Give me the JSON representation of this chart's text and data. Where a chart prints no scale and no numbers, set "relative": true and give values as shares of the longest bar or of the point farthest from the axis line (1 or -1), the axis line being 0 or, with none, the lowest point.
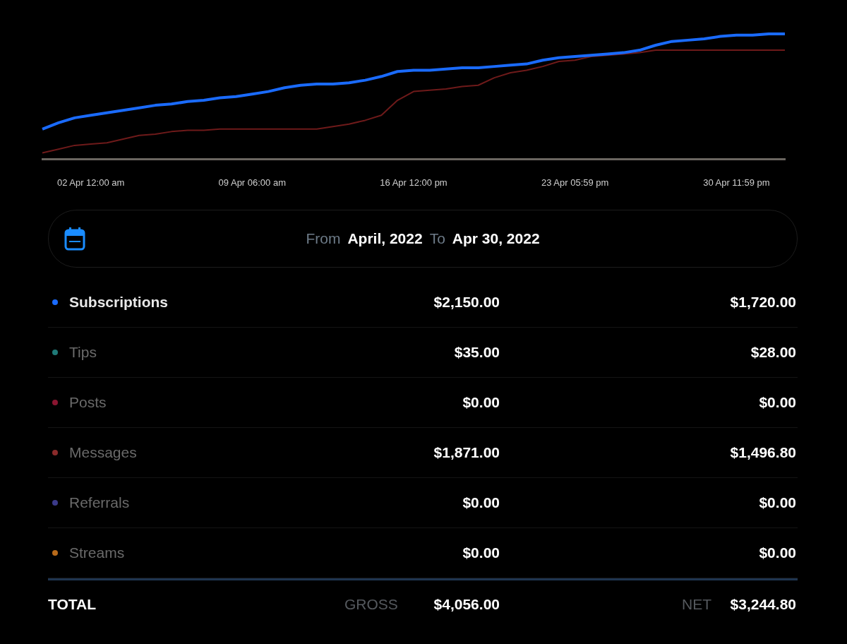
{
  "chart_data": [
    {
      "type": "line",
      "relative": true,
      "legend": false,
      "grid": false,
      "categories": [
        null,
        null,
        null,
        "02 Apr 12:00 am",
        null,
        null,
        null,
        null,
        null,
        null,
        null,
        null,
        null,
        "09 Apr 06:00 am",
        null,
        null,
        null,
        null,
        null,
        null,
        null,
        null,
        null,
        "16 Apr 12:00 pm",
        null,
        null,
        null,
        null,
        null,
        null,
        null,
        null,
        null,
        "23 Apr 05:59 pm",
        null,
        null,
        null,
        null,
        null,
        null,
        null,
        null,
        null,
        "30 Apr 11:59 pm",
        null,
        null,
        null
      ],
      "series": [
        {
          "color": "#1a6bff",
          "values": [
            0.24,
            0.29,
            0.33,
            0.35,
            0.37,
            0.39,
            0.41,
            0.43,
            0.44,
            0.46,
            0.47,
            0.49,
            0.5,
            0.52,
            0.54,
            0.57,
            0.59,
            0.6,
            0.6,
            0.61,
            0.63,
            0.66,
            0.7,
            0.71,
            0.71,
            0.72,
            0.73,
            0.73,
            0.74,
            0.75,
            0.76,
            0.79,
            0.81,
            0.82,
            0.83,
            0.84,
            0.85,
            0.87,
            0.91,
            0.94,
            0.95,
            0.96,
            0.98,
            0.99,
            0.99,
            1.0,
            1.0
          ]
        },
        {
          "color": "#6e1a1a",
          "values": [
            0.05,
            0.08,
            0.11,
            0.12,
            0.13,
            0.16,
            0.19,
            0.2,
            0.22,
            0.23,
            0.23,
            0.24,
            0.24,
            0.24,
            0.24,
            0.24,
            0.24,
            0.24,
            0.26,
            0.28,
            0.31,
            0.35,
            0.47,
            0.54,
            0.55,
            0.56,
            0.58,
            0.59,
            0.65,
            0.69,
            0.71,
            0.74,
            0.78,
            0.79,
            0.82,
            0.83,
            0.84,
            0.85,
            0.87,
            0.87,
            0.87,
            0.87,
            0.87,
            0.87,
            0.87,
            0.87,
            0.87
          ]
        }
      ]
    },
    {
      "type": "other",
      "annotations": [
        "From",
        "April, 2022",
        "To",
        "Apr 30, 2022",
        "TOTAL",
        "GROSS",
        "NET"
      ],
      "categories": [
        "Subscriptions",
        "Tips",
        "Posts",
        "Messages",
        "Referrals",
        "Streams"
      ],
      "colors": [
        "#1a6bff",
        "#1f7a78",
        "#8a1530",
        "#8a2a2a",
        "#3b3a8a",
        "#b86a1a"
      ],
      "series": [
        {
          "values": [
            2150,
            35,
            0,
            1871,
            0,
            0
          ],
          "value_labels": [
            "$2,150.00",
            "$35.00",
            "$0.00",
            "$1,871.00",
            "$0.00",
            "$0.00"
          ]
        },
        {
          "values": [
            1720,
            28,
            0,
            1496.8,
            0,
            0
          ],
          "value_labels": [
            "$1,720.00",
            "$28.00",
            "$0.00",
            "$1,496.80",
            "$0.00",
            "$0.00"
          ]
        }
      ],
      "totals": [
        "$4,056.00",
        "$3,244.80"
      ]
    }
  ]
}
